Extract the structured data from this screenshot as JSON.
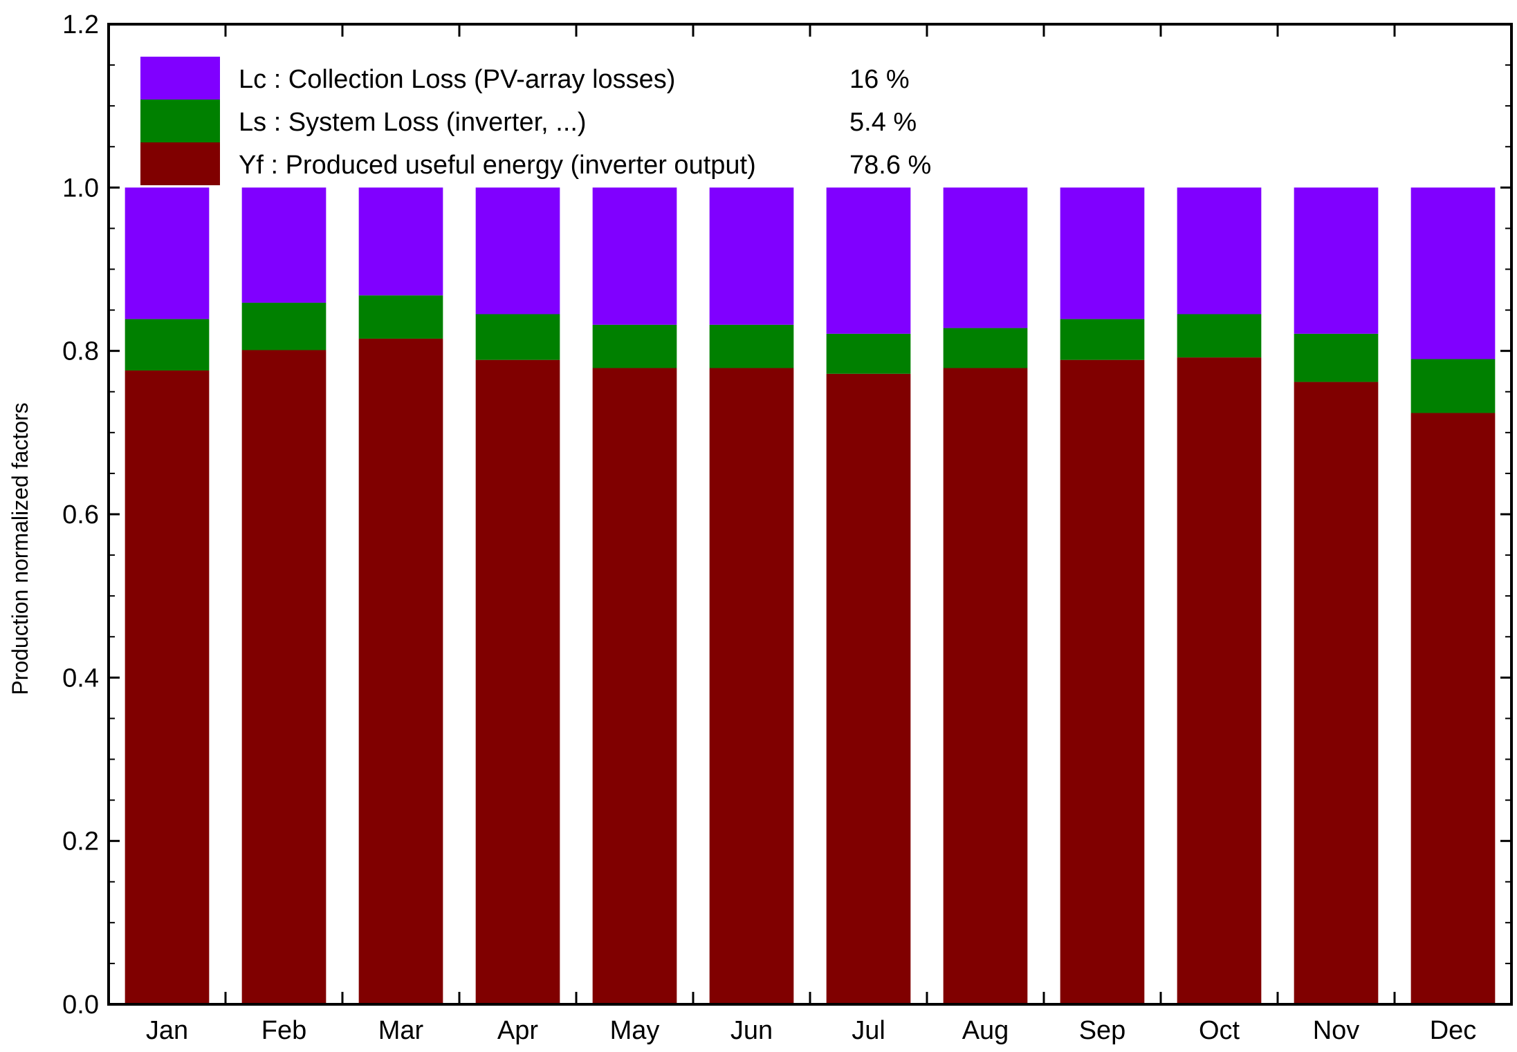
{
  "chart_data": {
    "type": "bar",
    "stacked": true,
    "categories": [
      "Jan",
      "Feb",
      "Mar",
      "Apr",
      "May",
      "Jun",
      "Jul",
      "Aug",
      "Sep",
      "Oct",
      "Nov",
      "Dec"
    ],
    "series": [
      {
        "name": "Yf : Produced useful energy  (inverter output)",
        "percent": "78.6 %",
        "color": "#800000",
        "values": [
          0.776,
          0.801,
          0.815,
          0.789,
          0.779,
          0.779,
          0.772,
          0.779,
          0.789,
          0.792,
          0.762,
          0.724
        ]
      },
      {
        "name": "Ls : System Loss  (inverter, ...)",
        "percent": "5.4 %",
        "color": "#008000",
        "values": [
          0.063,
          0.058,
          0.053,
          0.056,
          0.053,
          0.053,
          0.049,
          0.049,
          0.05,
          0.053,
          0.059,
          0.066
        ]
      },
      {
        "name": "Lc : Collection Loss (PV-array losses)",
        "percent": "16 %",
        "color": "#8000ff",
        "values": [
          0.161,
          0.141,
          0.132,
          0.155,
          0.168,
          0.168,
          0.179,
          0.172,
          0.161,
          0.155,
          0.179,
          0.21
        ]
      }
    ],
    "title": "",
    "xlabel": "",
    "ylabel": "Production normalized factors",
    "ylim": [
      0,
      1.2
    ],
    "yticks": [
      "0.0",
      "0.2",
      "0.4",
      "0.6",
      "0.8",
      "1.0",
      "1.2"
    ],
    "grid": false,
    "legend_position": "top-left"
  }
}
